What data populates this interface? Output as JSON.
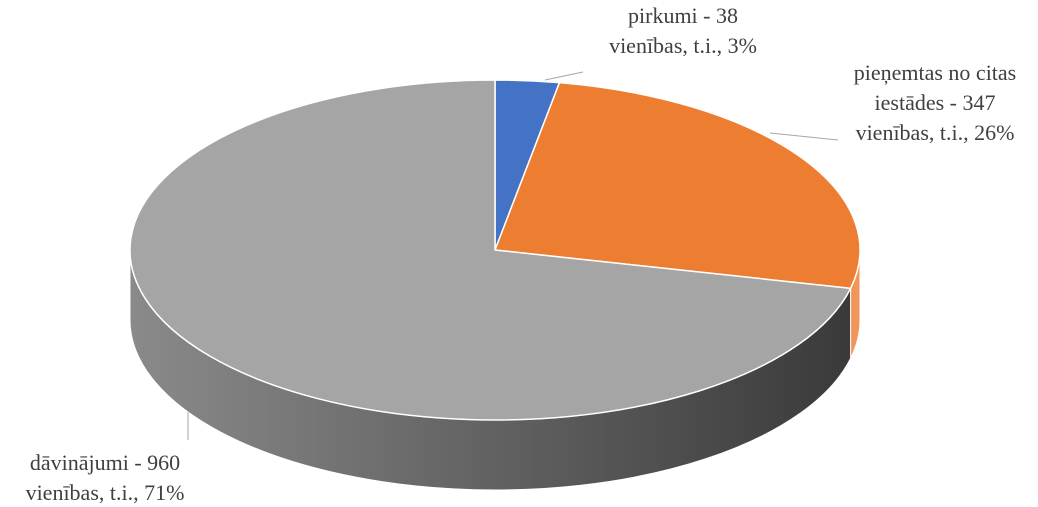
{
  "chart_data": {
    "type": "pie",
    "values": [
      38,
      347,
      960
    ],
    "value_labels": [
      [
        "pirkumi - 38",
        "vienības, t.i., 3%"
      ],
      [
        "pieņemtas no citas",
        "iestādes - 347",
        "vienības, t.i., 26%"
      ],
      [
        "dāvinājumi - 960",
        "vienības, t.i., 71%"
      ]
    ],
    "colors": [
      "#4472c4",
      "#ed7d31",
      "#a5a5a5"
    ]
  }
}
